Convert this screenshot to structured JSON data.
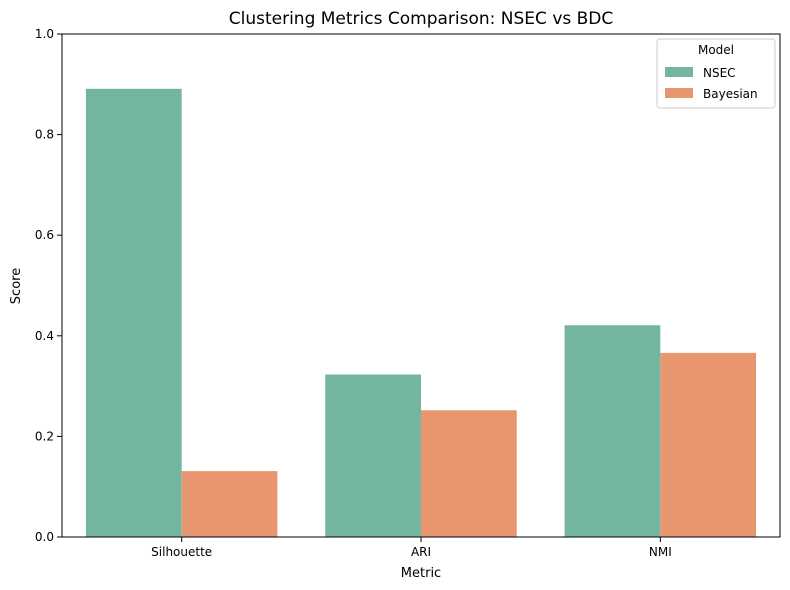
{
  "chart_data": {
    "type": "bar",
    "title": "Clustering Metrics Comparison: NSEC vs BDC",
    "xlabel": "Metric",
    "ylabel": "Score",
    "categories": [
      "Silhouette",
      "ARI",
      "NMI"
    ],
    "series": [
      {
        "name": "NSEC",
        "values": [
          0.891,
          0.323,
          0.421
        ],
        "color": "#73b5a0"
      },
      {
        "name": "Bayesian",
        "values": [
          0.131,
          0.252,
          0.366
        ],
        "color": "#e8966f"
      }
    ],
    "ylim": [
      0,
      1.0
    ],
    "yticks": [
      "0.0",
      "0.2",
      "0.4",
      "0.6",
      "0.8",
      "1.0"
    ],
    "legend": {
      "title": "Model",
      "position": "top-right"
    },
    "grid": false
  }
}
